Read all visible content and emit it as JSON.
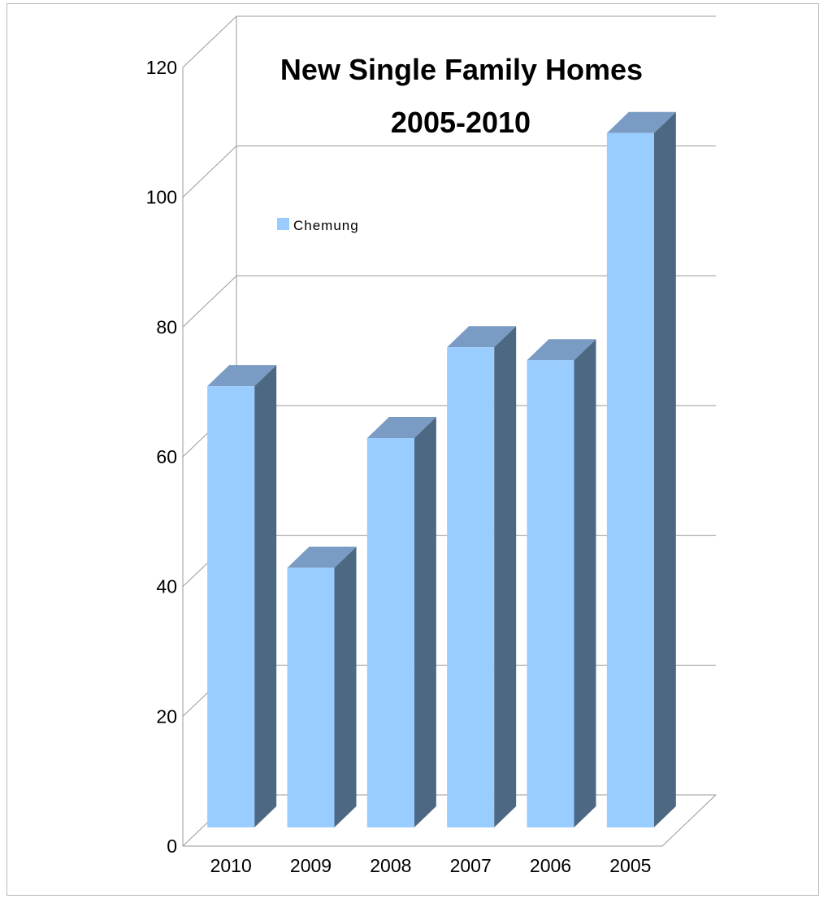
{
  "chart_data": {
    "type": "bar",
    "title_lines": [
      "New Single Family Homes",
      "2005-2010"
    ],
    "categories": [
      "2010",
      "2009",
      "2008",
      "2007",
      "2006",
      "2005"
    ],
    "series": [
      {
        "name": "Chemung",
        "values": [
          68,
          40,
          60,
          74,
          72,
          107
        ]
      }
    ],
    "ylim": [
      0,
      120
    ],
    "yticks": [
      0,
      20,
      40,
      60,
      80,
      100,
      120
    ],
    "grid": true,
    "legend_position": "top-left",
    "three_d": true,
    "colors": {
      "bar_front": "#99ccff",
      "bar_side": "#4d6882",
      "bar_top": "#7a9cc4",
      "grid": "#9a9a9a",
      "frame": "#b8b8b8"
    }
  }
}
